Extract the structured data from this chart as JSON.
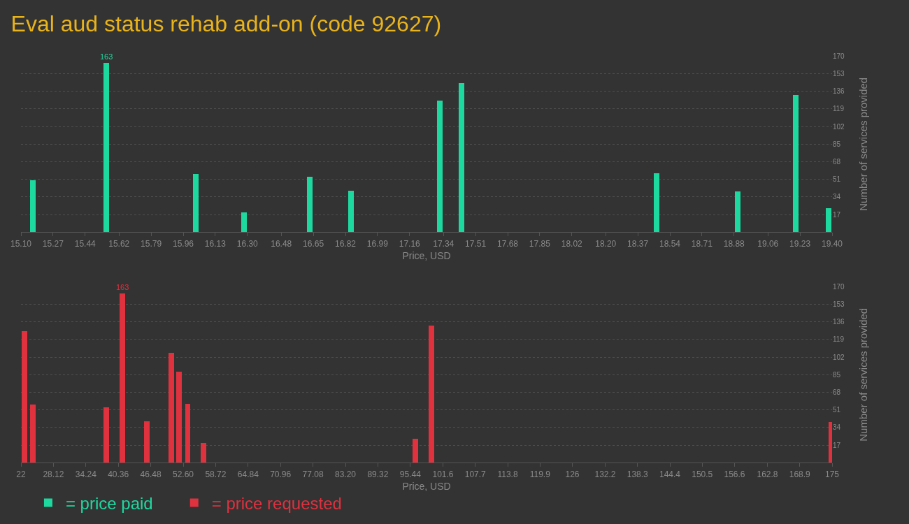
{
  "chart_data": [
    {
      "type": "bar",
      "title": "Eval aud status rehab add-on (code 92627)",
      "xlabel": "Price, USD",
      "ylabel": "Number of services provided",
      "series": [
        {
          "name": "= price paid",
          "color": "#1ed99f",
          "x": [
            15.163,
            15.552,
            16.027,
            16.284,
            16.632,
            16.85,
            17.32,
            17.435,
            18.47,
            18.9,
            19.208,
            19.38
          ],
          "values": [
            50,
            163,
            56,
            19,
            53,
            40,
            127,
            144,
            57,
            39,
            132,
            23
          ],
          "value_labels": [
            null,
            "163",
            null,
            null,
            null,
            null,
            null,
            null,
            null,
            null,
            null,
            null
          ]
        }
      ],
      "xlim": [
        15.1,
        19.4
      ],
      "xticks": [
        {
          "value": 15.1,
          "label": "15.10"
        },
        15.27,
        15.44,
        15.62,
        15.79,
        15.96,
        16.13,
        {
          "value": 16.3,
          "label": "16.30"
        },
        16.48,
        16.65,
        16.82,
        16.99,
        17.16,
        17.34,
        17.51,
        17.68,
        17.85,
        18.02,
        {
          "value": 18.2,
          "label": "18.20"
        },
        18.37,
        18.54,
        18.71,
        18.88,
        19.06,
        19.23,
        {
          "value": 19.4,
          "label": "19.40"
        }
      ],
      "ylim": [
        0,
        170
      ],
      "yticks": [
        17,
        34,
        51,
        68,
        85,
        102,
        119,
        136,
        153,
        170
      ],
      "grid": "y",
      "legend": "bottom left"
    },
    {
      "type": "bar",
      "xlabel": "Price, USD",
      "ylabel": "Number of services provided",
      "series": [
        {
          "name": "= price requested",
          "color": "#e0313f",
          "x": [
            22.71,
            24.25,
            38.07,
            41.1,
            45.76,
            50.32,
            51.86,
            53.45,
            56.47,
            96.36,
            99.48,
            174.8
          ],
          "values": [
            127,
            56,
            53,
            163,
            40,
            106,
            88,
            57,
            19,
            23,
            132,
            39
          ],
          "value_labels": [
            null,
            null,
            null,
            "163",
            null,
            null,
            null,
            null,
            null,
            null,
            null,
            null
          ]
        }
      ],
      "xlim": [
        22,
        175
      ],
      "xticks": [
        22,
        28.12,
        34.24,
        40.36,
        46.48,
        {
          "value": 52.6,
          "label": "52.60"
        },
        58.72,
        64.84,
        70.96,
        77.08,
        {
          "value": 83.2,
          "label": "83.20"
        },
        89.32,
        95.44,
        101.6,
        107.7,
        113.8,
        119.9,
        126,
        132.2,
        138.3,
        144.4,
        150.5,
        156.6,
        162.8,
        168.9,
        175
      ],
      "ylim": [
        0,
        170
      ],
      "yticks": [
        17,
        34,
        51,
        68,
        85,
        102,
        119,
        136,
        153,
        170
      ],
      "grid": "y",
      "legend": "bottom left"
    }
  ]
}
